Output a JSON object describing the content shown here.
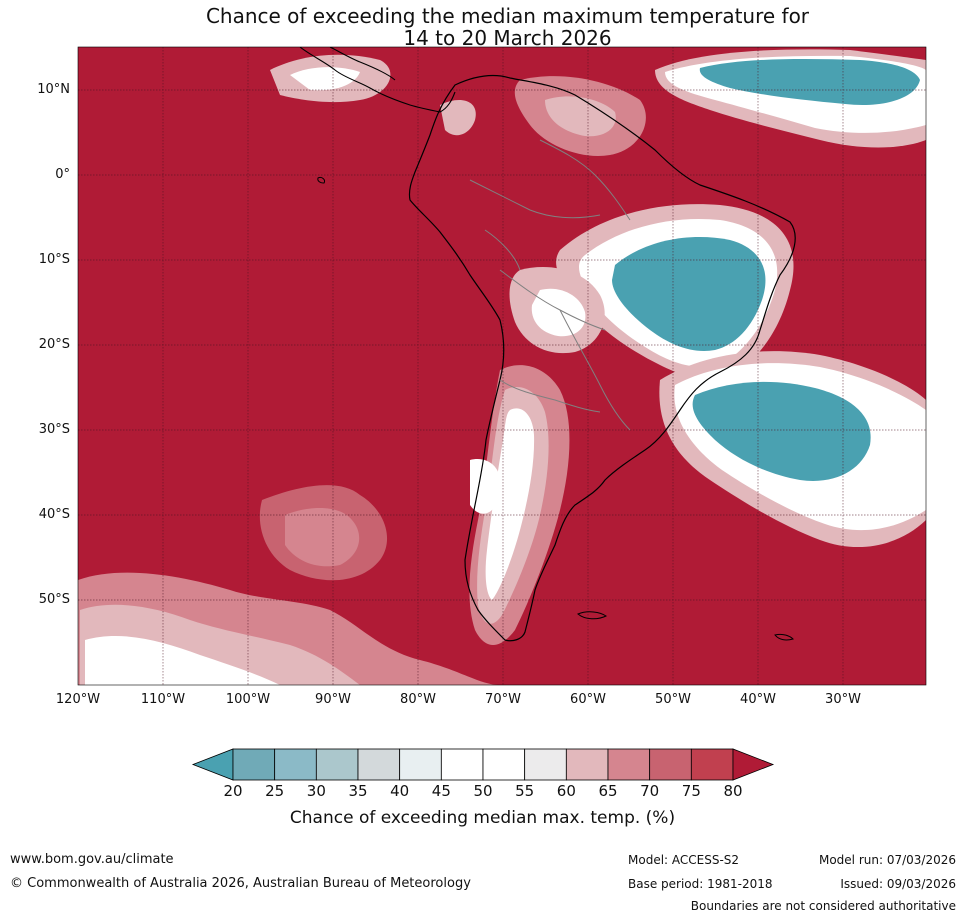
{
  "title": {
    "line1": "Chance of exceeding the median maximum temperature for",
    "line2": "14 to 20 March 2026"
  },
  "map": {
    "lat_labels": [
      "10°N",
      "0°",
      "10°S",
      "20°S",
      "30°S",
      "40°S",
      "50°S"
    ],
    "lon_labels": [
      "120°W",
      "110°W",
      "100°W",
      "90°W",
      "80°W",
      "70°W",
      "60°W",
      "50°W",
      "40°W",
      "30°W"
    ],
    "background_color": "#b01b36",
    "coastline_color": "#000000",
    "border_color": "#808080"
  },
  "colorbar": {
    "ticks": [
      "20",
      "25",
      "30",
      "35",
      "40",
      "45",
      "50",
      "55",
      "60",
      "65",
      "70",
      "75",
      "80"
    ],
    "colors": [
      "#4aa1b1",
      "#70aab7",
      "#8bbac7",
      "#abc7cc",
      "#d3d9db",
      "#e8eff1",
      "#ffffff",
      "#ffffff",
      "#ecebec",
      "#e2b8bc",
      "#d5858f",
      "#c86370",
      "#c1404f",
      "#b01b36"
    ],
    "label": "Chance of exceeding median max. temp. (%)"
  },
  "footer": {
    "website": "www.bom.gov.au/climate",
    "copyright": "© Commonwealth of Australia 2026, Australian Bureau of Meteorology",
    "model": "Model: ACCESS-S2",
    "base_period": "Base period: 1981-2018",
    "model_run": "Model run: 07/03/2026",
    "issued": "Issued: 09/03/2026",
    "disclaimer": "Boundaries are not considered authoritative"
  }
}
